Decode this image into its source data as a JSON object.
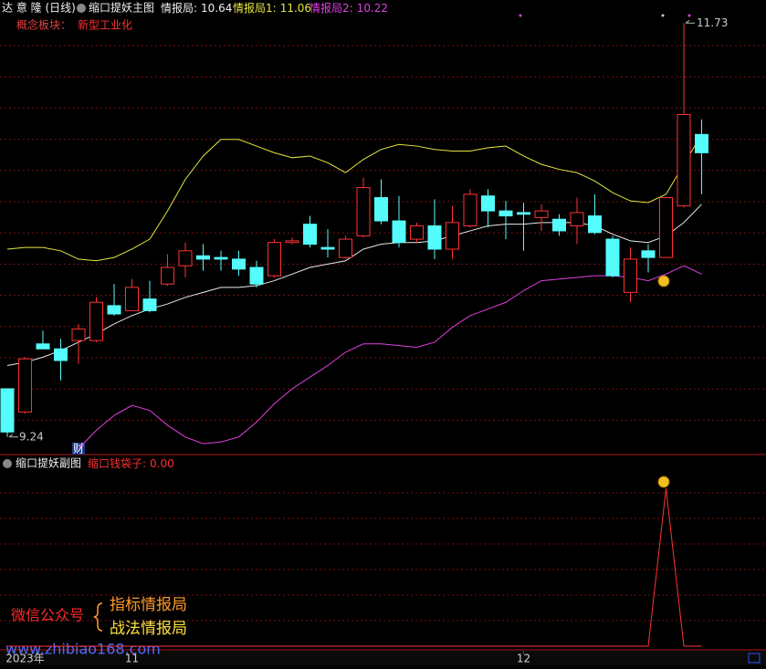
{
  "header": {
    "stock": "达 意 隆 (日线)",
    "concept_label": "概念板块：",
    "concept": "新型工业化",
    "badge": "财"
  },
  "watermark": {
    "account": "微信公众号",
    "line1": "指标情报局",
    "line2": "战法情报局",
    "url": "www.zhibiao168.com"
  },
  "chart_data": [
    {
      "type": "candlestick",
      "title": "缩口提妖主图",
      "up_color": "#ff3232",
      "down_color": "#54fcfc",
      "categories": [
        null,
        "2023年",
        null,
        null,
        null,
        null,
        null,
        "11",
        null,
        null,
        null,
        null,
        null,
        null,
        null,
        null,
        null,
        null,
        null,
        null,
        null,
        null,
        null,
        null,
        null,
        null,
        null,
        null,
        null,
        "12",
        null,
        null,
        null,
        null,
        null,
        null,
        null,
        null,
        null,
        null
      ],
      "open": [
        9.53,
        9.39,
        9.8,
        9.77,
        9.82,
        9.82,
        10.03,
        10.0,
        10.07,
        10.16,
        10.27,
        10.33,
        10.32,
        10.31,
        10.26,
        10.21,
        10.41,
        10.52,
        10.38,
        10.32,
        10.45,
        10.68,
        10.54,
        10.43,
        10.51,
        10.37,
        10.51,
        10.69,
        10.6,
        10.59,
        10.56,
        10.55,
        10.51,
        10.57,
        10.43,
        10.11,
        10.36,
        10.32,
        10.63,
        11.06
      ],
      "high": [
        9.53,
        9.72,
        9.88,
        9.83,
        9.92,
        10.08,
        10.16,
        10.19,
        10.18,
        10.34,
        10.41,
        10.4,
        10.36,
        10.36,
        10.3,
        10.43,
        10.44,
        10.57,
        10.49,
        10.45,
        10.8,
        10.79,
        10.69,
        10.53,
        10.67,
        10.63,
        10.73,
        10.73,
        10.66,
        10.65,
        10.64,
        10.58,
        10.68,
        10.7,
        10.45,
        10.38,
        10.4,
        10.68,
        11.73,
        11.15
      ],
      "low": [
        9.24,
        9.38,
        9.77,
        9.58,
        9.68,
        9.81,
        9.97,
        10.0,
        9.99,
        10.15,
        10.2,
        10.24,
        10.24,
        10.21,
        10.14,
        10.2,
        10.4,
        10.38,
        10.32,
        10.31,
        10.44,
        10.52,
        10.38,
        10.41,
        10.31,
        10.31,
        10.5,
        10.5,
        10.43,
        10.36,
        10.48,
        10.45,
        10.4,
        10.46,
        10.2,
        10.05,
        10.23,
        10.32,
        10.62,
        10.7
      ],
      "close": [
        9.27,
        9.71,
        9.77,
        9.7,
        9.89,
        10.05,
        9.98,
        10.14,
        10.0,
        10.26,
        10.36,
        10.31,
        10.31,
        10.25,
        10.16,
        10.41,
        10.42,
        10.4,
        10.37,
        10.43,
        10.74,
        10.54,
        10.41,
        10.51,
        10.37,
        10.53,
        10.7,
        10.6,
        10.57,
        10.58,
        10.6,
        10.48,
        10.59,
        10.47,
        10.21,
        10.31,
        10.32,
        10.68,
        11.18,
        10.95
      ],
      "series": [
        {
          "name": "情报局:",
          "color": "#e8e8e8",
          "values": [
            9.67,
            9.69,
            9.72,
            9.76,
            9.81,
            9.86,
            9.92,
            9.97,
            10.01,
            10.04,
            10.08,
            10.11,
            10.14,
            10.14,
            10.15,
            10.18,
            10.22,
            10.26,
            10.28,
            10.3,
            10.37,
            10.4,
            10.41,
            10.41,
            10.42,
            10.45,
            10.48,
            10.51,
            10.52,
            10.52,
            10.53,
            10.53,
            10.53,
            10.51,
            10.46,
            10.42,
            10.41,
            10.45,
            10.53,
            10.64
          ]
        },
        {
          "name": "情报局1:",
          "color": "#e6e640",
          "values": [
            10.37,
            10.38,
            10.38,
            10.36,
            10.31,
            10.3,
            10.32,
            10.37,
            10.43,
            10.6,
            10.79,
            10.93,
            11.03,
            11.03,
            10.99,
            10.95,
            10.92,
            10.93,
            10.89,
            10.83,
            10.91,
            10.97,
            11.0,
            10.99,
            10.97,
            10.96,
            10.96,
            10.98,
            10.99,
            10.93,
            10.88,
            10.85,
            10.83,
            10.78,
            10.71,
            10.66,
            10.65,
            10.7,
            10.88,
            11.06
          ]
        },
        {
          "name": "情报局2:",
          "color": "#e040e0",
          "values": [
            null,
            null,
            null,
            null,
            9.17,
            9.28,
            9.37,
            9.43,
            9.4,
            9.31,
            9.24,
            9.2,
            9.21,
            9.24,
            9.33,
            9.44,
            9.53,
            9.6,
            9.67,
            9.75,
            9.8,
            9.8,
            9.79,
            9.78,
            9.81,
            9.9,
            9.97,
            10.01,
            10.05,
            10.12,
            10.18,
            10.19,
            10.2,
            10.21,
            10.21,
            10.2,
            10.18,
            10.22,
            10.27,
            10.22
          ]
        }
      ],
      "ylim": [
        9.14,
        11.77
      ]
    },
    {
      "type": "line",
      "title": "缩口提妖副图",
      "series": [
        {
          "name": "缩口钱袋子:",
          "color": "#ff3232",
          "values": [
            0,
            0,
            0,
            0,
            0,
            0,
            0,
            0,
            0,
            0,
            0,
            0,
            0,
            0,
            0,
            0,
            0,
            0,
            0,
            0,
            0,
            0,
            0,
            0,
            0,
            0,
            0,
            0,
            0,
            0,
            0,
            0,
            0,
            0,
            0,
            0,
            0,
            1,
            0,
            0
          ],
          "value_labels": [
            null,
            null,
            null,
            null,
            null,
            null,
            null,
            null,
            null,
            null,
            null,
            null,
            null,
            null,
            null,
            null,
            null,
            null,
            null,
            null,
            null,
            null,
            null,
            null,
            null,
            null,
            null,
            null,
            null,
            null,
            null,
            null,
            null,
            null,
            null,
            null,
            null,
            null,
            null,
            "0.00"
          ]
        }
      ],
      "ylim": [
        0,
        1
      ]
    }
  ]
}
